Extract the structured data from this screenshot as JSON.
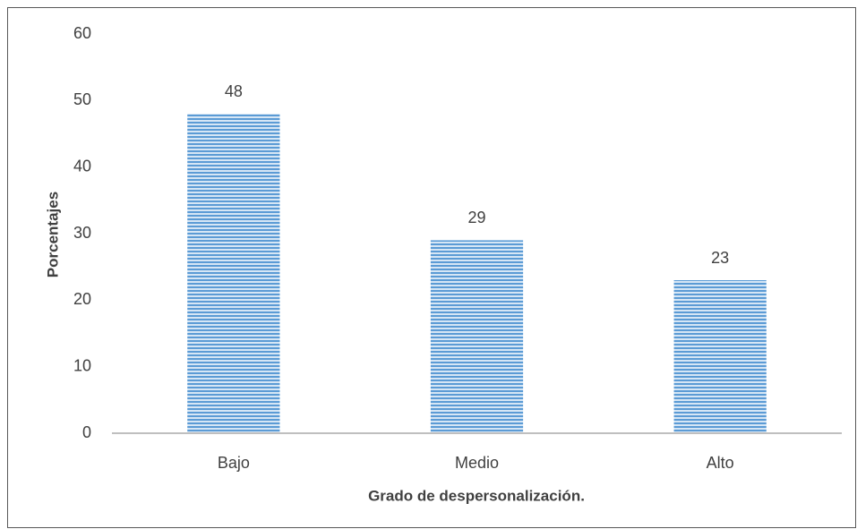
{
  "chart_data": {
    "type": "bar",
    "x_label": "Grado de despersonalización.",
    "y_label": "Porcentajes",
    "categories": [
      "Bajo",
      "Medio",
      "Alto"
    ],
    "values": [
      48,
      29,
      23
    ],
    "color": "#5b9bd5",
    "ylim": [
      0,
      60
    ],
    "yticks": [
      0,
      10,
      20,
      30,
      40,
      50,
      60
    ],
    "grid": false
  }
}
